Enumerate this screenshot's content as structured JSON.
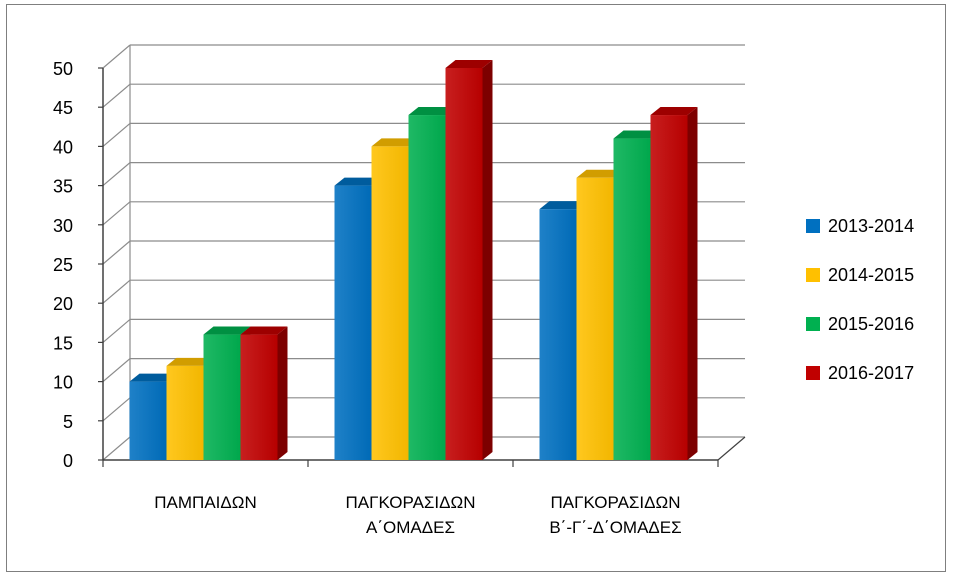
{
  "chart_data": {
    "type": "bar",
    "style": "3d-clustered-column",
    "categories": [
      [
        "ΠΑΜΠΑΙΔΩΝ"
      ],
      [
        "ΠΑΓΚΟΡΑΣΙΔΩΝ",
        "Α΄ΟΜΑΔΕΣ"
      ],
      [
        "ΠΑΓΚΟΡΑΣΙΔΩΝ",
        "Β΄-Γ΄-Δ΄ΟΜΑΔΕΣ"
      ]
    ],
    "series": [
      {
        "name": "2013-2014",
        "color": "#0070C0",
        "values": [
          10,
          35,
          32
        ]
      },
      {
        "name": "2014-2015",
        "color": "#FFC000",
        "values": [
          12,
          40,
          36
        ]
      },
      {
        "name": "2015-2016",
        "color": "#00B050",
        "values": [
          16,
          44,
          41
        ]
      },
      {
        "name": "2016-2017",
        "color": "#C00000",
        "values": [
          16,
          50,
          44
        ]
      }
    ],
    "ylim": [
      0,
      50
    ],
    "yticks": [
      "0",
      "5",
      "10",
      "15",
      "20",
      "25",
      "30",
      "35",
      "40",
      "45",
      "50"
    ],
    "grid": true,
    "legend_position": "right",
    "title": "",
    "xlabel": "",
    "ylabel": ""
  }
}
